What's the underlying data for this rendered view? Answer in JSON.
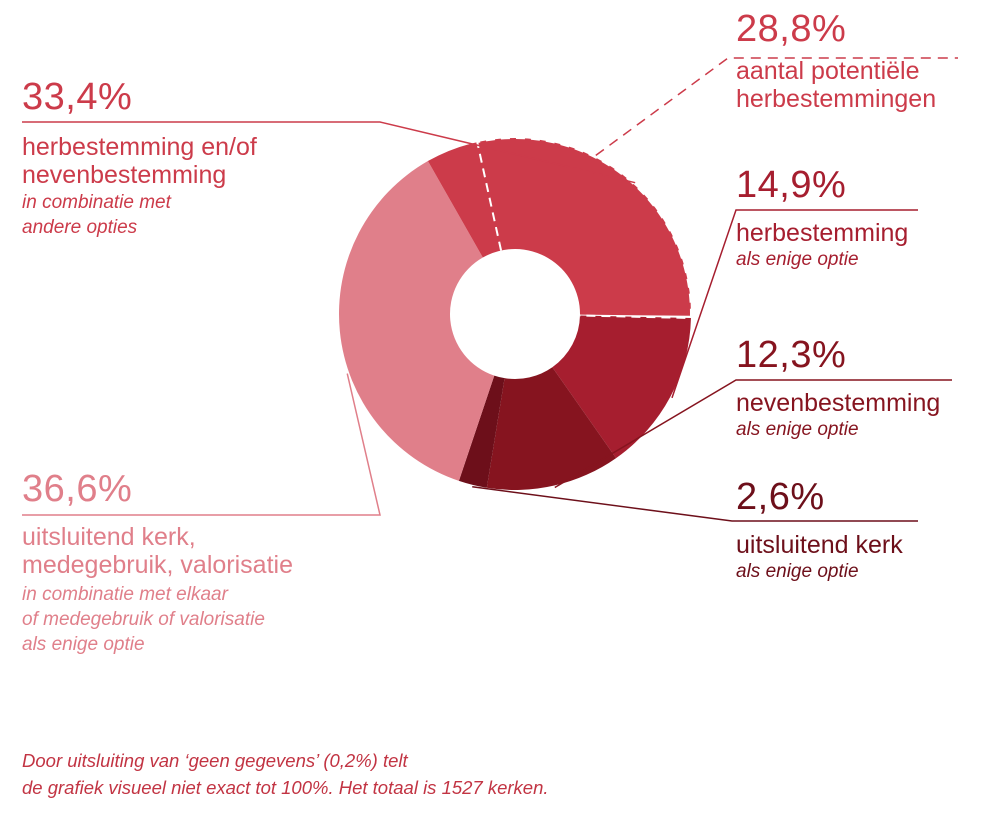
{
  "chart_data": {
    "type": "pie",
    "slices": [
      {
        "value": 14.9,
        "color": "#a61e2f"
      },
      {
        "value": 12.3,
        "color": "#86141f"
      },
      {
        "value": 2.6,
        "color": "#6d0f1a"
      },
      {
        "value": 36.6,
        "color": "#e07f8a"
      },
      {
        "value": 33.4,
        "color": "#cc3b4a"
      }
    ],
    "highlight_value": 28.8
  },
  "labels": {
    "potential": {
      "pct": "28,8%",
      "main": [
        "aantal potentiële",
        "herbestemmingen"
      ]
    },
    "herbestemming": {
      "pct": "14,9%",
      "main": [
        "herbestemming"
      ],
      "sub": [
        "als enige optie"
      ]
    },
    "nevenbestemming": {
      "pct": "12,3%",
      "main": [
        "nevenbestemming"
      ],
      "sub": [
        "als enige optie"
      ]
    },
    "kerk": {
      "pct": "2,6%",
      "main": [
        "uitsluitend kerk"
      ],
      "sub": [
        "als enige optie"
      ]
    },
    "combinatie": {
      "pct": "33,4%",
      "main": [
        "herbestemming en/of",
        "nevenbestemming"
      ],
      "sub": [
        "in combinatie met",
        "andere opties"
      ]
    },
    "uitsluitend": {
      "pct": "36,6%",
      "main": [
        "uitsluitend kerk,",
        "medegebruik, valorisatie"
      ],
      "sub": [
        "in combinatie met elkaar",
        "of medegebruik of valorisatie",
        "als enige optie"
      ]
    }
  },
  "footnote": [
    "Door uitsluiting van ‘geen gegevens’ (0,2%) telt",
    "de grafiek visueel niet exact tot 100%. Het totaal is 1527 kerken."
  ]
}
